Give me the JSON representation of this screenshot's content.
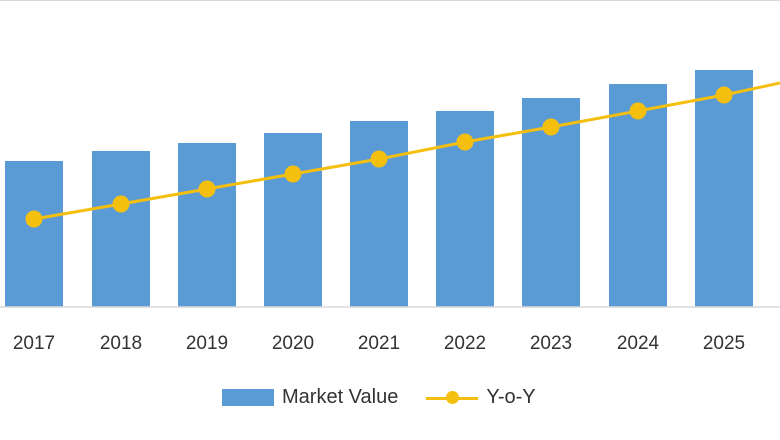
{
  "chart_data": {
    "type": "bar",
    "categories": [
      "2017",
      "2018",
      "2019",
      "2020",
      "2021",
      "2022",
      "2023",
      "2024",
      "2025"
    ],
    "series": [
      {
        "name": "Market Value",
        "type": "bar",
        "values": [
          146,
          156,
          164,
          174,
          186,
          196,
          209,
          223,
          237
        ]
      },
      {
        "name": "Y-o-Y",
        "type": "line",
        "values": [
          88,
          103,
          118,
          133,
          148,
          165,
          180,
          196,
          212
        ]
      }
    ],
    "ylim": [
      0,
      300
    ],
    "grid": false,
    "legend_position": "bottom",
    "colors": {
      "bar": "#5b9bd5",
      "line": "#f5bf0f",
      "axis": "#d9d9d9",
      "text": "#333333"
    },
    "title": "",
    "xlabel": "",
    "ylabel": ""
  }
}
